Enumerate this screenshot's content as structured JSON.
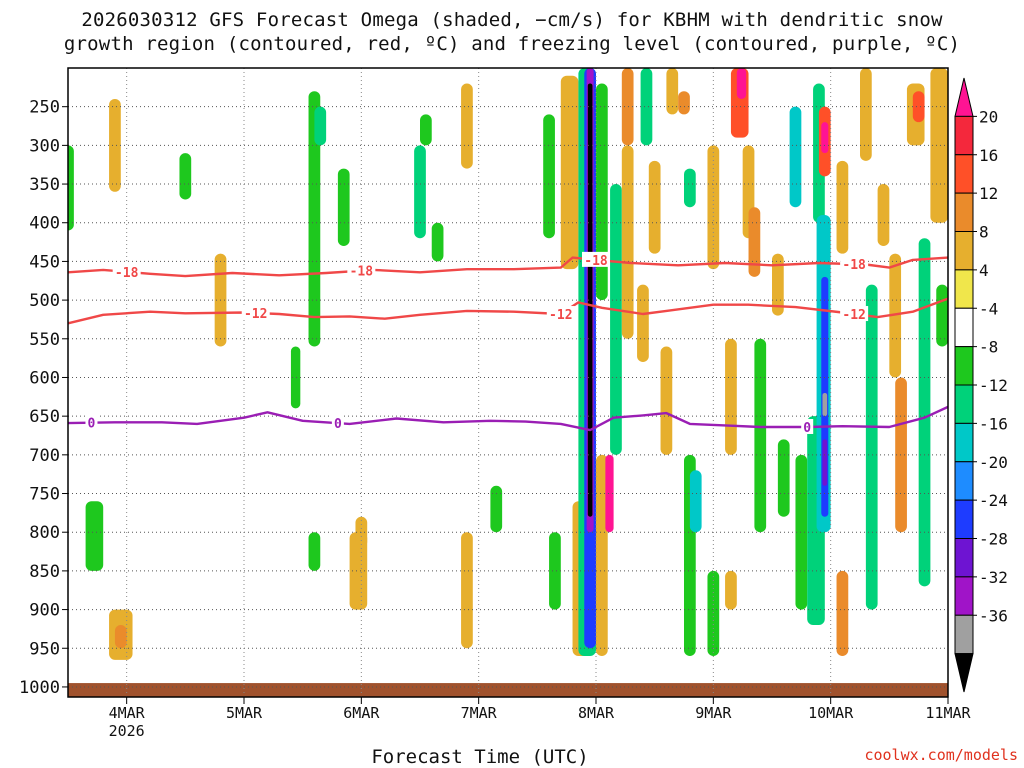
{
  "title": {
    "line1": "2026030312 GFS Forecast Omega (shaded, −cm/s) for KBHM with dendritic snow",
    "line2": "growth region (contoured, red, ºC) and freezing level (contoured, purple, ºC)"
  },
  "credit": "coolwx.com/models",
  "chart_data": {
    "type": "heatmap",
    "title": "2026030312 GFS Forecast Omega (shaded, −cm/s) for KBHM with dendritic snow growth region (contoured, red, ºC) and freezing level (contoured, purple, ºC)",
    "xlabel": "Forecast Time (UTC)",
    "ylabel": "",
    "x_ticks": [
      {
        "label": "4MAR",
        "sub": "2026",
        "t": 0.5
      },
      {
        "label": "5MAR",
        "sub": "",
        "t": 1.5
      },
      {
        "label": "6MAR",
        "sub": "",
        "t": 2.5
      },
      {
        "label": "7MAR",
        "sub": "",
        "t": 3.5
      },
      {
        "label": "8MAR",
        "sub": "",
        "t": 4.5
      },
      {
        "label": "9MAR",
        "sub": "",
        "t": 5.5
      },
      {
        "label": "10MAR",
        "sub": "",
        "t": 6.5
      },
      {
        "label": "11MAR",
        "sub": "",
        "t": 7.5
      }
    ],
    "xlim": [
      0,
      7.5
    ],
    "y_ticks": [
      250,
      300,
      350,
      400,
      450,
      500,
      550,
      600,
      650,
      700,
      750,
      800,
      850,
      900,
      950,
      1000
    ],
    "ylim": [
      200,
      1013
    ],
    "y_unit": "hPa",
    "ground_pressure": 995,
    "colorbar": {
      "labels": [
        "20",
        "16",
        "12",
        "8",
        "4",
        "-4",
        "-8",
        "-12",
        "-16",
        "-20",
        "-24",
        "-28",
        "-32",
        "-36"
      ],
      "bins": [
        {
          "color": "#ff1493",
          "arrow": true
        },
        {
          "color": "#f4283c"
        },
        {
          "color": "#ff5028"
        },
        {
          "color": "#ea8b2b"
        },
        {
          "color": "#e6af2e"
        },
        {
          "color": "#f0e64b"
        },
        {
          "color": "#ffffff"
        },
        {
          "color": "#1ec81e"
        },
        {
          "color": "#00d27a"
        },
        {
          "color": "#00c8c8"
        },
        {
          "color": "#1e8cff"
        },
        {
          "color": "#1e3cff"
        },
        {
          "color": "#6e14d2"
        },
        {
          "color": "#a014c8"
        },
        {
          "color": "#a0a0a0"
        },
        {
          "color": "#000000",
          "arrow": true
        }
      ]
    },
    "contours": [
      {
        "name": "temp-minus18",
        "label": "-18",
        "color": "#f04848",
        "points": [
          [
            0,
            464
          ],
          [
            0.3,
            461
          ],
          [
            0.7,
            466
          ],
          [
            1.0,
            469
          ],
          [
            1.4,
            465
          ],
          [
            1.8,
            468
          ],
          [
            2.2,
            465
          ],
          [
            2.6,
            461
          ],
          [
            3.0,
            464
          ],
          [
            3.4,
            460
          ],
          [
            3.8,
            460
          ],
          [
            4.2,
            458
          ],
          [
            4.3,
            445
          ],
          [
            4.5,
            448
          ],
          [
            4.8,
            452
          ],
          [
            5.2,
            455
          ],
          [
            5.6,
            452
          ],
          [
            6.0,
            455
          ],
          [
            6.4,
            452
          ],
          [
            6.8,
            454
          ],
          [
            7.0,
            458
          ],
          [
            7.2,
            448
          ],
          [
            7.5,
            445
          ]
        ],
        "label_at": [
          0.5,
          2.5,
          4.5,
          6.7
        ]
      },
      {
        "name": "temp-minus12",
        "label": "-12",
        "color": "#f04848",
        "points": [
          [
            0,
            530
          ],
          [
            0.3,
            519
          ],
          [
            0.7,
            515
          ],
          [
            1.0,
            517
          ],
          [
            1.5,
            516
          ],
          [
            1.8,
            518
          ],
          [
            2.1,
            522
          ],
          [
            2.4,
            521
          ],
          [
            2.7,
            524
          ],
          [
            3.0,
            519
          ],
          [
            3.4,
            514
          ],
          [
            3.8,
            515
          ],
          [
            4.2,
            518
          ],
          [
            4.35,
            503
          ],
          [
            4.55,
            510
          ],
          [
            4.9,
            518
          ],
          [
            5.1,
            514
          ],
          [
            5.5,
            506
          ],
          [
            5.8,
            506
          ],
          [
            6.2,
            509
          ],
          [
            6.6,
            516
          ],
          [
            6.9,
            522
          ],
          [
            7.2,
            515
          ],
          [
            7.5,
            498
          ]
        ],
        "label_at": [
          1.6,
          4.2,
          6.7
        ]
      },
      {
        "name": "freezing-level",
        "label": "0",
        "color": "#9a1eb4",
        "points": [
          [
            0,
            659
          ],
          [
            0.4,
            658
          ],
          [
            0.8,
            658
          ],
          [
            1.1,
            660
          ],
          [
            1.5,
            652
          ],
          [
            1.7,
            645
          ],
          [
            2.0,
            656
          ],
          [
            2.4,
            660
          ],
          [
            2.8,
            653
          ],
          [
            3.2,
            658
          ],
          [
            3.6,
            656
          ],
          [
            3.9,
            657
          ],
          [
            4.2,
            660
          ],
          [
            4.45,
            668
          ],
          [
            4.65,
            652
          ],
          [
            4.9,
            649
          ],
          [
            5.1,
            646
          ],
          [
            5.3,
            660
          ],
          [
            5.6,
            662
          ],
          [
            5.9,
            664
          ],
          [
            6.3,
            664
          ],
          [
            6.6,
            663
          ],
          [
            7.0,
            664
          ],
          [
            7.3,
            652
          ],
          [
            7.5,
            638
          ]
        ],
        "label_at": [
          0.2,
          2.3,
          6.3
        ]
      }
    ],
    "shaded_cells": [
      {
        "t0": -0.05,
        "t1": 0.05,
        "p0": 300,
        "p1": 410,
        "v": -6
      },
      {
        "t0": 0.35,
        "t1": 0.45,
        "p0": 240,
        "p1": 360,
        "v": 6
      },
      {
        "t0": 0.15,
        "t1": 0.3,
        "p0": 760,
        "p1": 850,
        "v": -6
      },
      {
        "t0": 0.35,
        "t1": 0.55,
        "p0": 900,
        "p1": 965,
        "v": 6
      },
      {
        "t0": 0.4,
        "t1": 0.5,
        "p0": 920,
        "p1": 950,
        "v": 10
      },
      {
        "t0": 0.95,
        "t1": 1.05,
        "p0": 310,
        "p1": 370,
        "v": -6
      },
      {
        "t0": 1.25,
        "t1": 1.35,
        "p0": 440,
        "p1": 560,
        "v": 6
      },
      {
        "t0": 1.9,
        "t1": 1.98,
        "p0": 560,
        "p1": 640,
        "v": -6
      },
      {
        "t0": 2.05,
        "t1": 2.15,
        "p0": 230,
        "p1": 560,
        "v": -6
      },
      {
        "t0": 2.1,
        "t1": 2.2,
        "p0": 250,
        "p1": 300,
        "v": -8
      },
      {
        "t0": 2.3,
        "t1": 2.4,
        "p0": 330,
        "p1": 430,
        "v": -6
      },
      {
        "t0": 2.05,
        "t1": 2.15,
        "p0": 800,
        "p1": 850,
        "v": -6
      },
      {
        "t0": 2.4,
        "t1": 2.55,
        "p0": 800,
        "p1": 900,
        "v": 6
      },
      {
        "t0": 2.45,
        "t1": 2.55,
        "p0": 780,
        "p1": 820,
        "v": 6
      },
      {
        "t0": 2.95,
        "t1": 3.05,
        "p0": 300,
        "p1": 420,
        "v": -10
      },
      {
        "t0": 3.0,
        "t1": 3.1,
        "p0": 260,
        "p1": 300,
        "v": -6
      },
      {
        "t0": 3.1,
        "t1": 3.2,
        "p0": 400,
        "p1": 450,
        "v": -6
      },
      {
        "t0": 3.35,
        "t1": 3.45,
        "p0": 220,
        "p1": 330,
        "v": 6
      },
      {
        "t0": 3.35,
        "t1": 3.45,
        "p0": 800,
        "p1": 950,
        "v": 6
      },
      {
        "t0": 3.6,
        "t1": 3.7,
        "p0": 740,
        "p1": 800,
        "v": -6
      },
      {
        "t0": 4.05,
        "t1": 4.15,
        "p0": 260,
        "p1": 420,
        "v": -6
      },
      {
        "t0": 4.1,
        "t1": 4.2,
        "p0": 800,
        "p1": 900,
        "v": -6
      },
      {
        "t0": 4.2,
        "t1": 4.35,
        "p0": 210,
        "p1": 460,
        "v": 6
      },
      {
        "t0": 4.3,
        "t1": 4.45,
        "p0": 760,
        "p1": 960,
        "v": 6
      },
      {
        "t0": 4.35,
        "t1": 4.5,
        "p0": 200,
        "p1": 960,
        "v": -10
      },
      {
        "t0": 4.4,
        "t1": 4.5,
        "p0": 200,
        "p1": 950,
        "v": -20
      },
      {
        "t0": 4.42,
        "t1": 4.48,
        "p0": 200,
        "p1": 800,
        "v": -30
      },
      {
        "t0": 4.43,
        "t1": 4.47,
        "p0": 220,
        "p1": 780,
        "v": -40
      },
      {
        "t0": 4.5,
        "t1": 4.6,
        "p0": 220,
        "p1": 500,
        "v": -6
      },
      {
        "t0": 4.5,
        "t1": 4.6,
        "p0": 700,
        "p1": 960,
        "v": 6
      },
      {
        "t0": 4.58,
        "t1": 4.65,
        "p0": 700,
        "p1": 800,
        "v": 22
      },
      {
        "t0": 4.62,
        "t1": 4.72,
        "p0": 350,
        "p1": 700,
        "v": -10
      },
      {
        "t0": 4.72,
        "t1": 4.82,
        "p0": 300,
        "p1": 550,
        "v": 6
      },
      {
        "t0": 4.72,
        "t1": 4.82,
        "p0": 200,
        "p1": 300,
        "v": 10
      },
      {
        "t0": 4.85,
        "t1": 4.95,
        "p0": 480,
        "p1": 580,
        "v": 6
      },
      {
        "t0": 4.88,
        "t1": 4.98,
        "p0": 200,
        "p1": 300,
        "v": -10
      },
      {
        "t0": 4.95,
        "t1": 5.05,
        "p0": 320,
        "p1": 440,
        "v": 6
      },
      {
        "t0": 5.05,
        "t1": 5.15,
        "p0": 560,
        "p1": 700,
        "v": 6
      },
      {
        "t0": 5.1,
        "t1": 5.2,
        "p0": 200,
        "p1": 260,
        "v": 6
      },
      {
        "t0": 5.2,
        "t1": 5.3,
        "p0": 230,
        "p1": 260,
        "v": 10
      },
      {
        "t0": 5.25,
        "t1": 5.35,
        "p0": 330,
        "p1": 380,
        "v": -10
      },
      {
        "t0": 5.25,
        "t1": 5.35,
        "p0": 700,
        "p1": 960,
        "v": -6
      },
      {
        "t0": 5.3,
        "t1": 5.4,
        "p0": 720,
        "p1": 800,
        "v": -12
      },
      {
        "t0": 5.45,
        "t1": 5.55,
        "p0": 300,
        "p1": 460,
        "v": 6
      },
      {
        "t0": 5.45,
        "t1": 5.55,
        "p0": 850,
        "p1": 960,
        "v": -6
      },
      {
        "t0": 5.6,
        "t1": 5.7,
        "p0": 850,
        "p1": 900,
        "v": 6
      },
      {
        "t0": 5.65,
        "t1": 5.8,
        "p0": 200,
        "p1": 290,
        "v": 12
      },
      {
        "t0": 5.7,
        "t1": 5.78,
        "p0": 200,
        "p1": 240,
        "v": 22
      },
      {
        "t0": 5.6,
        "t1": 5.7,
        "p0": 550,
        "p1": 700,
        "v": 6
      },
      {
        "t0": 5.75,
        "t1": 5.85,
        "p0": 300,
        "p1": 420,
        "v": 6
      },
      {
        "t0": 5.8,
        "t1": 5.9,
        "p0": 380,
        "p1": 470,
        "v": 10
      },
      {
        "t0": 5.85,
        "t1": 5.95,
        "p0": 550,
        "p1": 800,
        "v": -6
      },
      {
        "t0": 6.0,
        "t1": 6.1,
        "p0": 440,
        "p1": 520,
        "v": 6
      },
      {
        "t0": 6.05,
        "t1": 6.15,
        "p0": 680,
        "p1": 780,
        "v": -6
      },
      {
        "t0": 6.15,
        "t1": 6.25,
        "p0": 250,
        "p1": 380,
        "v": -12
      },
      {
        "t0": 6.2,
        "t1": 6.3,
        "p0": 700,
        "p1": 900,
        "v": -6
      },
      {
        "t0": 6.35,
        "t1": 6.45,
        "p0": 220,
        "p1": 400,
        "v": -8
      },
      {
        "t0": 6.4,
        "t1": 6.5,
        "p0": 250,
        "p1": 340,
        "v": 14
      },
      {
        "t0": 6.42,
        "t1": 6.48,
        "p0": 270,
        "p1": 310,
        "v": 22
      },
      {
        "t0": 6.3,
        "t1": 6.45,
        "p0": 650,
        "p1": 920,
        "v": -8
      },
      {
        "t0": 6.38,
        "t1": 6.5,
        "p0": 390,
        "p1": 800,
        "v": -14
      },
      {
        "t0": 6.42,
        "t1": 6.48,
        "p0": 470,
        "p1": 780,
        "v": -22
      },
      {
        "t0": 6.43,
        "t1": 6.47,
        "p0": 620,
        "p1": 650,
        "v": -34
      },
      {
        "t0": 6.43,
        "t1": 6.47,
        "p0": 680,
        "p1": 740,
        "v": -26
      },
      {
        "t0": 6.55,
        "t1": 6.65,
        "p0": 320,
        "p1": 440,
        "v": 6
      },
      {
        "t0": 6.55,
        "t1": 6.65,
        "p0": 850,
        "p1": 960,
        "v": 10
      },
      {
        "t0": 6.75,
        "t1": 6.85,
        "p0": 200,
        "p1": 320,
        "v": 6
      },
      {
        "t0": 6.8,
        "t1": 6.9,
        "p0": 480,
        "p1": 900,
        "v": -8
      },
      {
        "t0": 6.9,
        "t1": 7.0,
        "p0": 350,
        "p1": 430,
        "v": 6
      },
      {
        "t0": 7.0,
        "t1": 7.1,
        "p0": 440,
        "p1": 600,
        "v": 6
      },
      {
        "t0": 7.05,
        "t1": 7.15,
        "p0": 600,
        "p1": 800,
        "v": 10
      },
      {
        "t0": 7.15,
        "t1": 7.3,
        "p0": 220,
        "p1": 300,
        "v": 6
      },
      {
        "t0": 7.2,
        "t1": 7.3,
        "p0": 230,
        "p1": 270,
        "v": 12
      },
      {
        "t0": 7.25,
        "t1": 7.35,
        "p0": 420,
        "p1": 870,
        "v": -8
      },
      {
        "t0": 7.35,
        "t1": 7.5,
        "p0": 200,
        "p1": 400,
        "v": 6
      },
      {
        "t0": 7.4,
        "t1": 7.5,
        "p0": 480,
        "p1": 560,
        "v": -6
      }
    ]
  }
}
